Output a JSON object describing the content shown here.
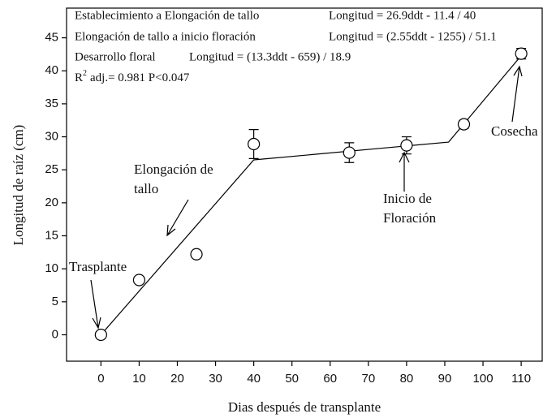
{
  "chart_data": {
    "type": "scatter",
    "xlabel": "Dias después de transplante",
    "ylabel": "Longitud de raíz (cm)",
    "x": [
      0,
      10,
      25,
      40,
      65,
      80,
      95,
      110
    ],
    "series": [
      {
        "values": [
          0,
          8.3,
          12.2,
          28.9,
          27.6,
          28.7,
          31.9,
          42.6
        ],
        "errors": [
          null,
          null,
          null,
          2.2,
          1.5,
          1.3,
          0.6,
          0.8
        ],
        "color": "#000000"
      }
    ],
    "fit": {
      "x": [
        0,
        40,
        91,
        110
      ],
      "values": [
        0,
        26.5,
        29.2,
        42.3
      ]
    },
    "xlim": [
      -9,
      115.5
    ],
    "ylim": [
      -4,
      49.5
    ],
    "xticks": [
      0,
      10,
      20,
      30,
      40,
      50,
      60,
      70,
      80,
      90,
      100,
      110
    ],
    "yticks": [
      0,
      5,
      10,
      15,
      20,
      25,
      30,
      35,
      40,
      45
    ],
    "equations": [
      {
        "label": "Establecimiento a Elongación de tallo",
        "formula": "Longitud = 26.9ddt - 11.4 / 40"
      },
      {
        "label": "Elongación de tallo a inicio floración",
        "formula": "Longitud = (2.55ddt - 1255) / 51.1"
      },
      {
        "label": "Desarrollo floral",
        "formula": "Longitud = (13.3ddt - 659) / 18.9"
      }
    ],
    "stats": {
      "base": "R",
      "sup": "2",
      "rest": "adj.= 0.981   P<0.047"
    },
    "annotations": [
      {
        "lines": [
          "Trasplante"
        ]
      },
      {
        "lines": [
          "Elongación de",
          "tallo"
        ]
      },
      {
        "lines": [
          "Inicio de",
          "Floración"
        ]
      },
      {
        "lines": [
          "Cosecha"
        ]
      }
    ]
  }
}
